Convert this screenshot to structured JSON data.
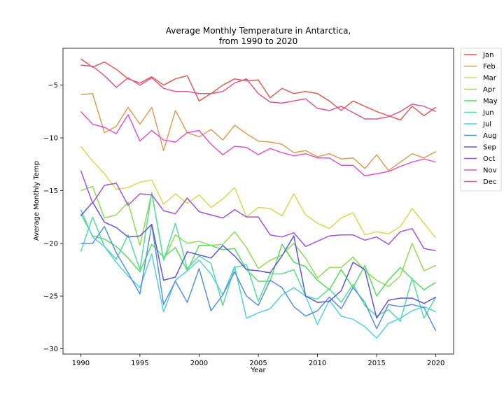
{
  "chart_data": {
    "type": "line",
    "title_line1": "Average Monthly Temperature in Antarctica,",
    "title_line2": "from 1990 to 2020",
    "xlabel": "Year",
    "ylabel": "Average Monthly Temp",
    "xlim": [
      1988.5,
      2021.5
    ],
    "ylim": [
      -30.5,
      -1.5
    ],
    "xticks": [
      1990,
      1995,
      2000,
      2005,
      2010,
      2015,
      2020
    ],
    "yticks": [
      -30,
      -25,
      -20,
      -15,
      -10,
      -5
    ],
    "grid": false,
    "legend_position": "outside-top-right",
    "x": [
      1990,
      1991,
      1992,
      1993,
      1994,
      1995,
      1996,
      1997,
      1998,
      1999,
      2000,
      2001,
      2002,
      2003,
      2004,
      2005,
      2006,
      2007,
      2008,
      2009,
      2010,
      2011,
      2012,
      2013,
      2014,
      2015,
      2016,
      2017,
      2018,
      2019,
      2020
    ],
    "series": [
      {
        "name": "Jan",
        "color": "#db5f57",
        "values": [
          -2.5,
          -3.3,
          -2.8,
          -3.5,
          -4.4,
          -4.8,
          -4.2,
          -5.0,
          -4.4,
          -4.1,
          -6.5,
          -5.8,
          -5.0,
          -4.4,
          -4.6,
          -4.5,
          -6.2,
          -5.3,
          -5.8,
          -5.6,
          -5.8,
          -6.5,
          -7.4,
          -6.5,
          -7.0,
          -7.5,
          -7.9,
          -8.3,
          -7.0,
          -7.9,
          -7.1
        ]
      },
      {
        "name": "Feb",
        "color": "#db9e57",
        "values": [
          -5.9,
          -5.8,
          -9.5,
          -8.9,
          -7.1,
          -8.7,
          -7.1,
          -11.2,
          -7.4,
          -9.5,
          -9.9,
          -9.2,
          -10.2,
          -8.8,
          -9.6,
          -10.3,
          -10.4,
          -10.6,
          -11.4,
          -11.2,
          -11.8,
          -11.5,
          -12.0,
          -11.9,
          -12.9,
          -11.6,
          -13.1,
          -12.3,
          -11.5,
          -11.9,
          -11.3
        ]
      },
      {
        "name": "Mar",
        "color": "#d0db57",
        "values": [
          -10.8,
          -12.2,
          -13.4,
          -14.9,
          -14.7,
          -14.2,
          -14.0,
          -16.3,
          -15.3,
          -16.2,
          -15.4,
          -16.6,
          -15.8,
          -14.7,
          -17.5,
          -16.6,
          -16.7,
          -17.4,
          -15.3,
          -17.3,
          -18.1,
          -18.6,
          -17.6,
          -17.1,
          -19.2,
          -18.9,
          -19.1,
          -18.4,
          -16.7,
          -18.1,
          -19.5
        ]
      },
      {
        "name": "Apr",
        "color": "#91db57",
        "values": [
          -15.0,
          -14.6,
          -17.6,
          -17.3,
          -16.1,
          -20.2,
          -15.2,
          -21.6,
          -19.2,
          -20.0,
          -19.8,
          -20.2,
          -20.1,
          -18.9,
          -20.4,
          -22.4,
          -21.6,
          -21.1,
          -20.0,
          -21.4,
          -23.3,
          -22.3,
          -22.3,
          -21.3,
          -22.6,
          -23.5,
          -24.1,
          -23.1,
          -20.0,
          -22.6,
          -22.1
        ]
      },
      {
        "name": "May",
        "color": "#57db5f",
        "values": [
          -17.2,
          -19.3,
          -19.6,
          -20.3,
          -21.4,
          -22.7,
          -20.1,
          -21.3,
          -20.4,
          -22.6,
          -20.2,
          -20.2,
          -20.6,
          -20.5,
          -22.5,
          -23.6,
          -23.6,
          -20.1,
          -21.8,
          -22.2,
          -23.5,
          -24.4,
          -22.5,
          -24.2,
          -22.1,
          -25.0,
          -23.5,
          -22.3,
          -23.4,
          -24.4,
          -23.7
        ]
      },
      {
        "name": "Jun",
        "color": "#57db9e",
        "values": [
          -20.8,
          -17.5,
          -20.3,
          -21.5,
          -19.2,
          -22.5,
          -15.2,
          -21.6,
          -18.1,
          -22.4,
          -21.2,
          -21.9,
          -25.9,
          -22.3,
          -22.0,
          -25.5,
          -22.9,
          -22.9,
          -22.5,
          -25.0,
          -25.3,
          -24.3,
          -25.6,
          -23.9,
          -25.9,
          -26.9,
          -26.3,
          -27.4,
          -23.3,
          -27.1,
          -25.1
        ]
      },
      {
        "name": "Jul",
        "color": "#57d0db",
        "values": [
          -16.8,
          -19.4,
          -20.3,
          -21.8,
          -23.1,
          -24.2,
          -21.0,
          -26.5,
          -23.5,
          -22.6,
          -21.6,
          -22.9,
          -24.9,
          -22.2,
          -27.1,
          -26.6,
          -26.2,
          -24.9,
          -24.2,
          -25.0,
          -27.7,
          -25.4,
          -26.9,
          -27.2,
          -27.9,
          -29.0,
          -27.6,
          -27.1,
          -26.4,
          -26.0,
          -26.5
        ]
      },
      {
        "name": "Aug",
        "color": "#5791db",
        "values": [
          -20.0,
          -20.0,
          -18.4,
          -20.9,
          -22.8,
          -24.8,
          -18.2,
          -25.8,
          -23.6,
          -25.6,
          -22.4,
          -26.4,
          -24.9,
          -22.7,
          -25.0,
          -25.9,
          -23.5,
          -24.2,
          -26.0,
          -26.9,
          -26.4,
          -25.1,
          -26.2,
          -24.2,
          -25.6,
          -28.1,
          -25.8,
          -26.0,
          -25.8,
          -26.1,
          -28.3
        ]
      },
      {
        "name": "Sep",
        "color": "#5f57db",
        "values": [
          -17.4,
          -16.1,
          -18.0,
          -18.5,
          -19.4,
          -19.3,
          -18.2,
          -23.5,
          -23.2,
          -20.8,
          -21.1,
          -21.4,
          -20.2,
          -21.2,
          -22.5,
          -22.6,
          -22.8,
          -21.2,
          -19.3,
          -25.0,
          -25.6,
          -25.5,
          -24.5,
          -21.8,
          -22.5,
          -27.1,
          -25.4,
          -25.2,
          -25.2,
          -25.7,
          -25.1
        ]
      },
      {
        "name": "Oct",
        "color": "#9e57db",
        "values": [
          -13.1,
          -16.2,
          -14.5,
          -14.3,
          -16.4,
          -15.3,
          -15.4,
          -16.9,
          -17.2,
          -15.7,
          -17.0,
          -17.3,
          -17.6,
          -16.8,
          -17.5,
          -17.5,
          -19.2,
          -19.4,
          -19.0,
          -20.3,
          -19.8,
          -19.3,
          -19.2,
          -19.2,
          -19.7,
          -19.4,
          -20.1,
          -18.9,
          -18.6,
          -20.5,
          -20.7
        ]
      },
      {
        "name": "Nov",
        "color": "#db57d0",
        "values": [
          -7.5,
          -8.7,
          -9.0,
          -9.6,
          -7.8,
          -10.3,
          -9.3,
          -10.2,
          -10.4,
          -9.5,
          -9.3,
          -10.6,
          -11.6,
          -10.8,
          -10.9,
          -11.6,
          -11.0,
          -11.4,
          -11.7,
          -11.5,
          -11.9,
          -11.9,
          -12.6,
          -12.6,
          -13.6,
          -13.4,
          -13.2,
          -12.7,
          -12.3,
          -12.0,
          -12.3
        ]
      },
      {
        "name": "Dec",
        "color": "#db5791",
        "values": [
          -3.1,
          -3.2,
          -4.1,
          -5.2,
          -4.3,
          -5.0,
          -4.3,
          -5.3,
          -5.6,
          -5.6,
          -5.8,
          -5.8,
          -5.6,
          -4.8,
          -4.4,
          -5.8,
          -6.6,
          -6.7,
          -6.5,
          -6.3,
          -7.2,
          -7.4,
          -7.0,
          -7.6,
          -8.2,
          -8.2,
          -8.0,
          -7.5,
          -6.8,
          -7.0,
          -7.5
        ]
      }
    ]
  }
}
